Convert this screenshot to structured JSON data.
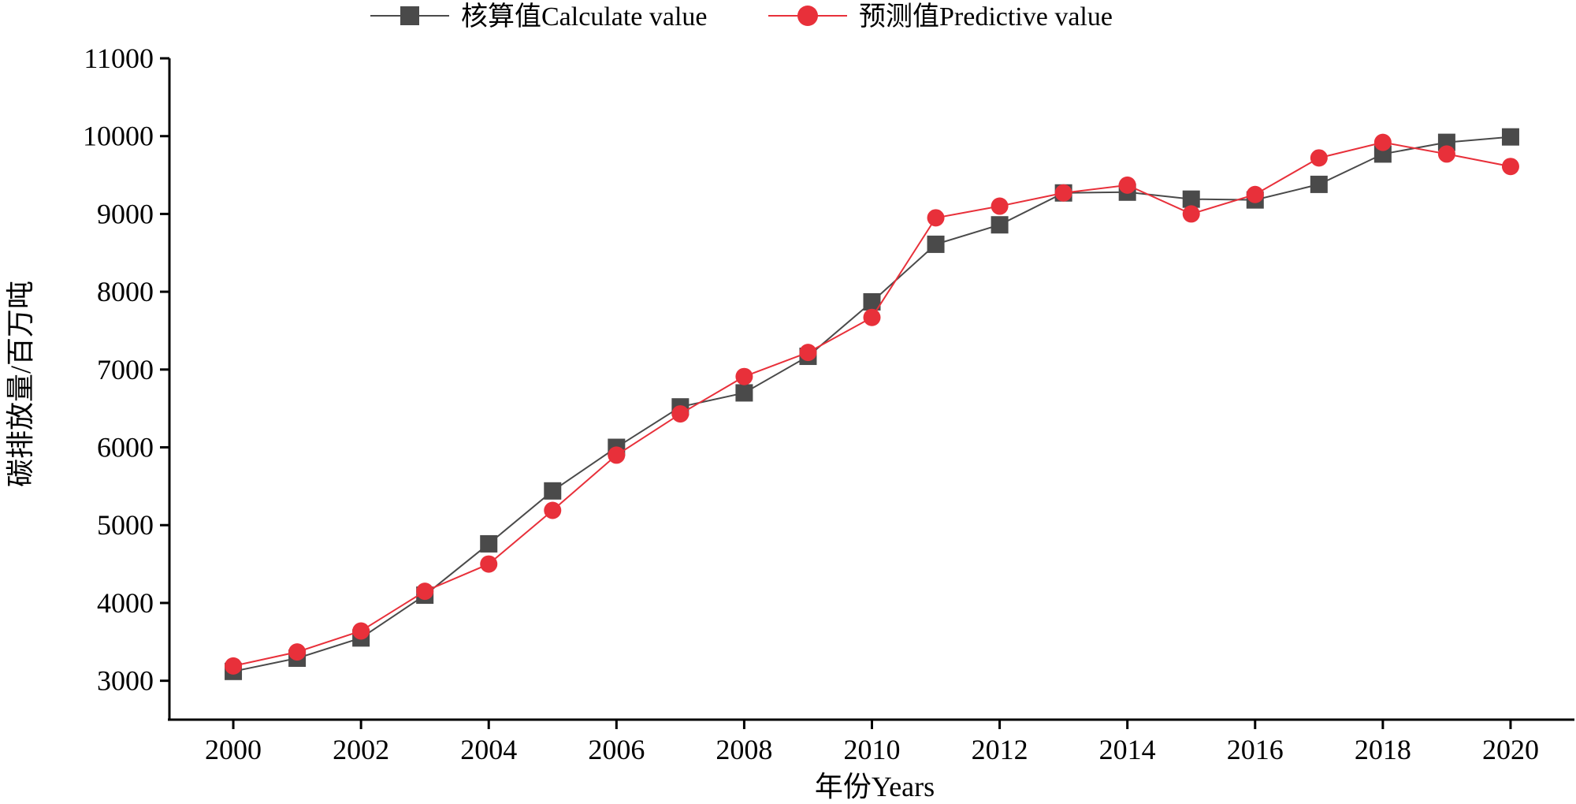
{
  "chart_data": {
    "type": "line",
    "title": "",
    "xlabel": "年份Years",
    "ylabel": "碳排放量/百万吨",
    "x": [
      2000,
      2001,
      2002,
      2003,
      2004,
      2005,
      2006,
      2007,
      2008,
      2009,
      2010,
      2011,
      2012,
      2013,
      2014,
      2015,
      2016,
      2017,
      2018,
      2019,
      2020
    ],
    "xlim": [
      1999,
      2021
    ],
    "ylim": [
      2500,
      11000
    ],
    "x_ticks": [
      "2000",
      "2002",
      "2004",
      "2006",
      "2008",
      "2010",
      "2012",
      "2014",
      "2016",
      "2018",
      "2020"
    ],
    "y_ticks": [
      "3000",
      "4000",
      "5000",
      "6000",
      "7000",
      "8000",
      "9000",
      "10000",
      "11000"
    ],
    "legend_position": "top-center",
    "series": [
      {
        "name": "核算值Calculate value",
        "color": "#4a4a4a",
        "marker": "square",
        "values": [
          3120,
          3290,
          3550,
          4100,
          4760,
          5440,
          6000,
          6520,
          6700,
          7170,
          7870,
          8610,
          8860,
          9270,
          9280,
          9190,
          9180,
          9380,
          9770,
          9920,
          9990
        ]
      },
      {
        "name": "预测值Predictive value",
        "color": "#e8303a",
        "marker": "circle",
        "values": [
          3190,
          3370,
          3640,
          4150,
          4500,
          5190,
          5900,
          6430,
          6910,
          7220,
          7670,
          8950,
          9100,
          9270,
          9370,
          9000,
          9250,
          9720,
          9920,
          9770,
          9610
        ]
      }
    ]
  }
}
